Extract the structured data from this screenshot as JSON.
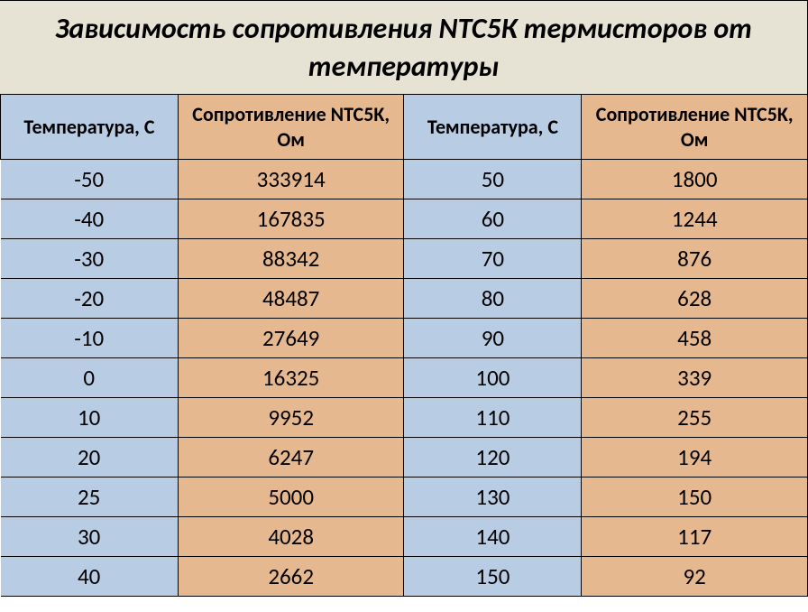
{
  "title": "Зависимость сопротивления NТС5К термисторов от температуры",
  "table": {
    "type": "table",
    "columns": [
      "Температура, С",
      "Сопротивление NTC5K, Ом",
      "Температура, С",
      "Сопротивление NTC5K, Ом"
    ],
    "rows": [
      [
        "-50",
        "333914",
        "50",
        "1800"
      ],
      [
        "-40",
        "167835",
        "60",
        "1244"
      ],
      [
        "-30",
        "88342",
        "70",
        "876"
      ],
      [
        "-20",
        "48487",
        "80",
        "628"
      ],
      [
        "-10",
        "27649",
        "90",
        "458"
      ],
      [
        "0",
        "16325",
        "100",
        "339"
      ],
      [
        "10",
        "9952",
        "110",
        "255"
      ],
      [
        "20",
        "6247",
        "120",
        "194"
      ],
      [
        "25",
        "5000",
        "130",
        "150"
      ],
      [
        "30",
        "4028",
        "140",
        "117"
      ],
      [
        "40",
        "2662",
        "150",
        "92"
      ]
    ],
    "header_colors": [
      "#b8cce4",
      "#e6b88f",
      "#b8cce4",
      "#e6b88f"
    ],
    "body_colors": [
      "#b8cce4",
      "#e6b88f",
      "#b8cce4",
      "#e6b88f"
    ],
    "title_background": "#e7e3d4",
    "border_color": "#000000",
    "title_fontsize": 32,
    "header_fontsize": 22,
    "body_fontsize": 25,
    "column_widths_pct": [
      22,
      28,
      22,
      28
    ]
  }
}
